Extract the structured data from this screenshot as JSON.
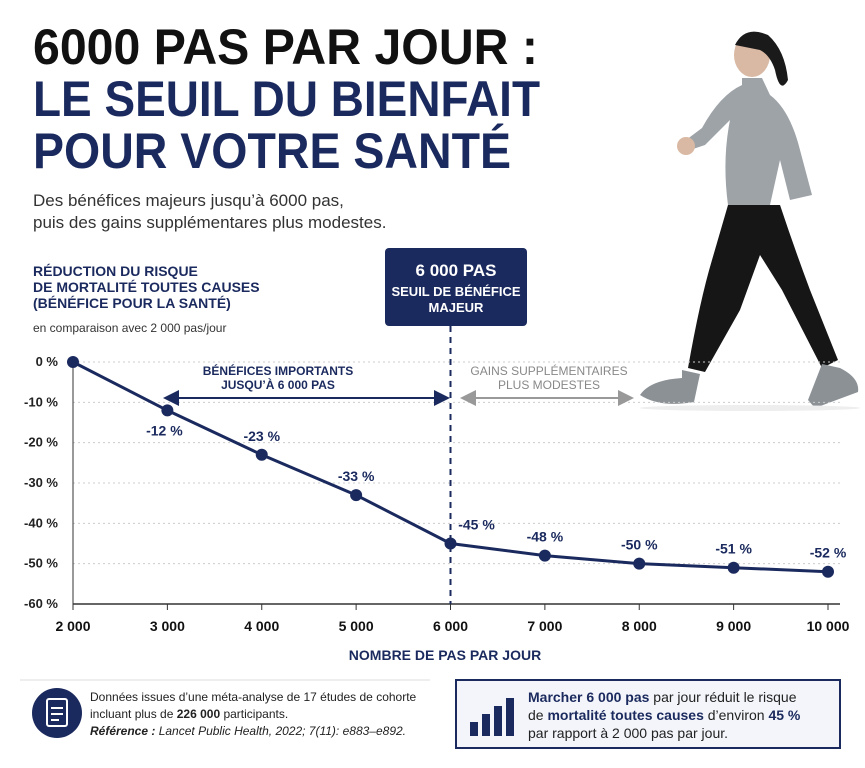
{
  "header": {
    "title_lines": [
      "6000 PAS PAR JOUR :",
      "LE SEUIL DU BIENFAIT",
      "POUR VOTRE SANTÉ"
    ],
    "subtitle_lines": [
      "Des bénéfices majeurs jusqu’à 6000 pas,",
      "puis des gains supplémentares plus modestes."
    ]
  },
  "chart_data": {
    "type": "line",
    "ylabel_lines": [
      "RÉDUCTION DU RISQUE",
      "DE MORTALITÉ TOUTES CAUSES",
      "(BÉNÉFICE POUR LA SANTÉ)"
    ],
    "ylabel_note": "en comparaison avec 2 000 pas/jour",
    "xlabel": "NOMBRE DE PAS PAR JOUR",
    "x": [
      2000,
      3000,
      4000,
      5000,
      6000,
      7000,
      8000,
      9000,
      10000
    ],
    "values": [
      0,
      -12,
      -23,
      -33,
      -45,
      -48,
      -50,
      -51,
      -52
    ],
    "value_labels": [
      null,
      "-12 %",
      "-23 %",
      "-33 %",
      "-45 %",
      "-48 %",
      "-50 %",
      "-51 %",
      "-52 %"
    ],
    "color": "#1b2a5e",
    "xlim": [
      2000,
      10000
    ],
    "ylim": [
      -60,
      0
    ],
    "xticks": [
      {
        "value": 2000,
        "label": "2 000"
      },
      {
        "value": 3000,
        "label": "3 000"
      },
      {
        "value": 4000,
        "label": "4 000"
      },
      {
        "value": 5000,
        "label": "5 000"
      },
      {
        "value": 6000,
        "label": "6 000"
      },
      {
        "value": 7000,
        "label": "7 000"
      },
      {
        "value": 8000,
        "label": "8 000"
      },
      {
        "value": 9000,
        "label": "9 000"
      },
      {
        "value": 10000,
        "label": "10 000"
      }
    ],
    "yticks": [
      {
        "value": 0,
        "label": "0 %"
      },
      {
        "value": -10,
        "label": "-10 %"
      },
      {
        "value": -20,
        "label": "-20 %"
      },
      {
        "value": -30,
        "label": "-30 %"
      },
      {
        "value": -40,
        "label": "-40 %"
      },
      {
        "value": -50,
        "label": "-50 %"
      },
      {
        "value": -60,
        "label": "-60 %"
      }
    ],
    "grid": true,
    "threshold": 6000,
    "threshold_box": [
      "6 000 PAS",
      "SEUIL DE BÉNÉFICE",
      "MAJEUR"
    ],
    "left_annotation": [
      "BÉNÉFICES IMPORTANTS",
      "JUSQU’À 6 000 PAS"
    ],
    "right_annotation": [
      "GAINS SUPPLÉMENTAIRES",
      "PLUS MODESTES"
    ]
  },
  "footer": {
    "source": [
      [
        {
          "text": "Données issues d’une méta-analyse de 17 études de cohorte",
          "bold": false
        }
      ],
      [
        {
          "text": "incluant plus de ",
          "bold": false
        },
        {
          "text": "226 000",
          "bold": true
        },
        {
          "text": " participants.",
          "bold": false
        }
      ],
      [
        {
          "text": "Référence :",
          "bold": true
        },
        {
          "text": " Lancet Public Health, 2022; 7(11): e883–e892.",
          "bold": false
        }
      ]
    ],
    "takeaway": [
      [
        {
          "text": "Marcher 6 000 pas",
          "bold": true
        },
        {
          "text": " par jour réduit le risque",
          "bold": false
        }
      ],
      [
        {
          "text": "de ",
          "bold": false
        },
        {
          "text": "mortalité toutes causes",
          "bold": true
        },
        {
          "text": " d’environ ",
          "bold": false
        },
        {
          "text": "45 %",
          "bold": true
        }
      ],
      [
        {
          "text": "par rapport à 2 000 pas par jour.",
          "bold": false
        }
      ]
    ]
  }
}
